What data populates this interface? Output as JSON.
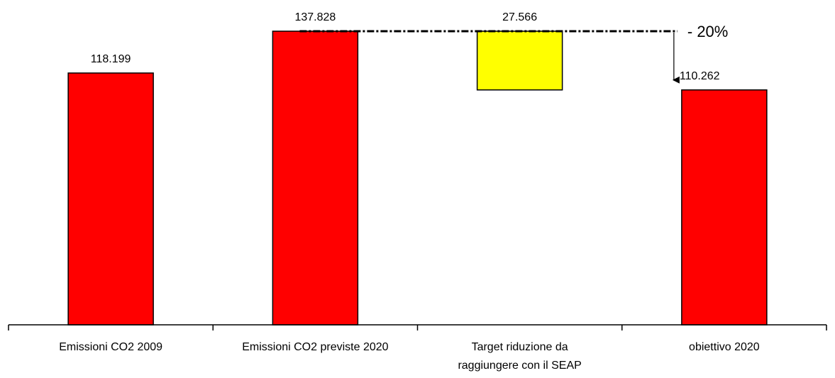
{
  "chart_data": {
    "type": "bar",
    "variant": "waterfall",
    "categories": [
      [
        "Emissioni CO2 2009"
      ],
      [
        "Emissioni CO2 previste 2020"
      ],
      [
        "Target riduzione da",
        "raggiungere con il SEAP"
      ],
      [
        "obiettivo 2020"
      ]
    ],
    "values": [
      118199,
      137828,
      27566,
      110262
    ],
    "value_labels": [
      "118.199",
      "137.828",
      "27.566",
      "110.262"
    ],
    "reduction_bar": {
      "category_index": 2,
      "from": 137828,
      "to": 110262
    },
    "bar_colors": [
      "#ff0000",
      "#ff0000",
      "#ffff00",
      "#ff0000"
    ],
    "annotation": {
      "text": "- 20%",
      "reference_value": 137828
    },
    "title": "",
    "xlabel": "",
    "ylabel": "",
    "ylim": [
      0,
      137828
    ],
    "grid": false,
    "legend": "none"
  },
  "colors": {
    "red": "#ff0000",
    "yellow": "#ffff00",
    "border": "#000000"
  }
}
